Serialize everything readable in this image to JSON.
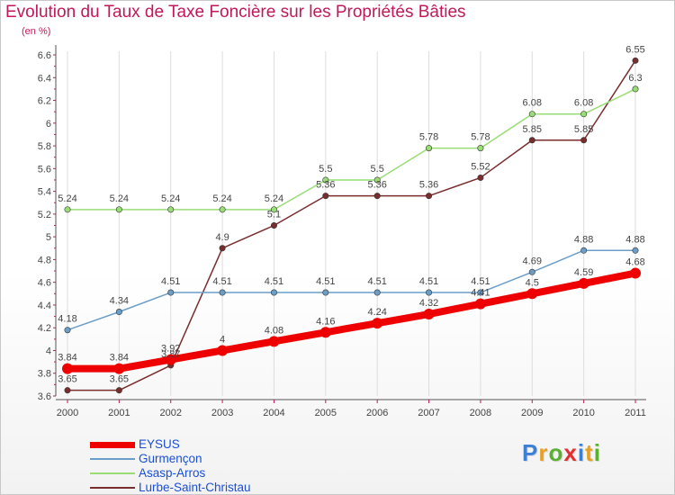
{
  "chart_data": {
    "type": "line",
    "title": "Evolution du Taux de Taxe Foncière sur les Propriétés Bâties",
    "subtitle": "(en %)",
    "xlabel": "",
    "ylabel": "",
    "x": [
      "2000",
      "2001",
      "2002",
      "2003",
      "2004",
      "2005",
      "2006",
      "2007",
      "2008",
      "2009",
      "2010",
      "2011"
    ],
    "ylim": [
      3.6,
      6.6
    ],
    "yticks": [
      3.6,
      3.8,
      4,
      4.2,
      4.4,
      4.6,
      4.8,
      5,
      5.2,
      5.4,
      5.6,
      5.8,
      6,
      6.2,
      6.4,
      6.6
    ],
    "ytick_labels": [
      "3.6",
      "3.8",
      "4",
      "4.2",
      "4.4",
      "4.6",
      "4.8",
      "5",
      "5.2",
      "5.4",
      "5.6",
      "5.8",
      "6",
      "6.2",
      "6.4",
      "6.6"
    ],
    "grid": "vertical",
    "legend_position": "bottom-left",
    "series": [
      {
        "name": "EYSUS",
        "color": "#ee0000",
        "values": [
          3.84,
          3.84,
          3.92,
          4,
          4.08,
          4.16,
          4.24,
          4.32,
          4.41,
          4.5,
          4.59,
          4.68
        ],
        "labels": [
          "3.84",
          "3.84",
          "3.92",
          "4",
          "4.08",
          "4.16",
          "4.24",
          "4.32",
          "4.41",
          "4.5",
          "4.59",
          "4.68"
        ]
      },
      {
        "name": "Gurmençon",
        "color": "#6a9ec9",
        "values": [
          4.18,
          4.34,
          4.51,
          4.51,
          4.51,
          4.51,
          4.51,
          4.51,
          4.51,
          4.69,
          4.88,
          4.88
        ],
        "labels": [
          "4.18",
          "4.34",
          "4.51",
          "4.51",
          "4.51",
          "4.51",
          "4.51",
          "4.51",
          "4.51",
          "4.69",
          "4.88",
          "4.88"
        ]
      },
      {
        "name": "Asasp-Arros",
        "color": "#99dd77",
        "values": [
          5.24,
          5.24,
          5.24,
          5.24,
          5.24,
          5.5,
          5.5,
          5.78,
          5.78,
          6.08,
          6.08,
          6.3
        ],
        "labels": [
          "5.24",
          "5.24",
          "5.24",
          "5.24",
          "5.24",
          "5.5",
          "5.5",
          "5.78",
          "5.78",
          "6.08",
          "6.08",
          "6.3"
        ]
      },
      {
        "name": "Lurbe-Saint-Christau",
        "color": "#7a2d2d",
        "values": [
          3.65,
          3.65,
          3.87,
          4.9,
          5.1,
          5.36,
          5.36,
          5.36,
          5.52,
          5.85,
          5.85,
          6.55
        ],
        "labels": [
          "3.65",
          "3.65",
          "3.87",
          "4.9",
          "5.1",
          "5.36",
          "5.36",
          "5.36",
          "5.52",
          "5.85",
          "5.85",
          "6.55"
        ]
      }
    ]
  },
  "logo": {
    "letters": [
      "P",
      "r",
      "o",
      "x",
      "i",
      "t",
      "i"
    ],
    "colors": [
      "#3b7fd6",
      "#e8a020",
      "#5ab030",
      "#e03030",
      "#3b7fd6",
      "#e8a020",
      "#5ab030"
    ]
  }
}
